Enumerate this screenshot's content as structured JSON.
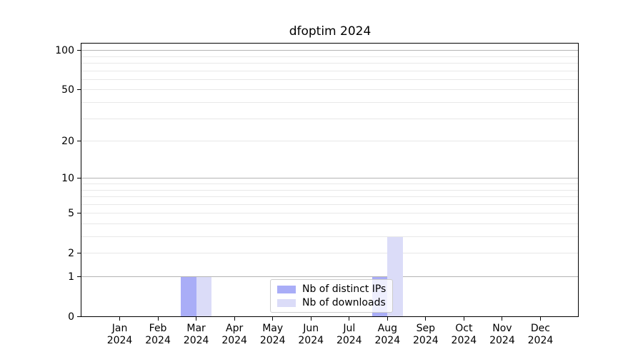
{
  "chart_data": {
    "type": "bar",
    "title": "dfoptim 2024",
    "categories": [
      "Jan 2024",
      "Feb 2024",
      "Mar 2024",
      "Apr 2024",
      "May 2024",
      "Jun 2024",
      "Jul 2024",
      "Aug 2024",
      "Sep 2024",
      "Oct 2024",
      "Nov 2024",
      "Dec 2024"
    ],
    "series": [
      {
        "name": "Nb of distinct IPs",
        "color": "#a9adf7",
        "values": [
          0,
          0,
          1,
          0,
          0,
          0,
          0,
          1,
          0,
          0,
          0,
          0
        ]
      },
      {
        "name": "Nb of downloads",
        "color": "#dbdcf8",
        "values": [
          0,
          0,
          1,
          0,
          0,
          0,
          0,
          3,
          0,
          0,
          0,
          0
        ]
      }
    ],
    "xlabel": "",
    "ylabel": "",
    "y_axis": {
      "scale": "log1p",
      "ticks": [
        0,
        1,
        2,
        5,
        10,
        20,
        50,
        100
      ],
      "max": 113,
      "grid_major": [
        1,
        10,
        100
      ],
      "grid_minor": [
        2,
        3,
        4,
        5,
        6,
        7,
        8,
        9,
        20,
        30,
        40,
        50,
        60,
        70,
        80,
        90
      ]
    },
    "legend": {
      "position": "lower-center-inside"
    },
    "background_color": "#ffffff"
  }
}
